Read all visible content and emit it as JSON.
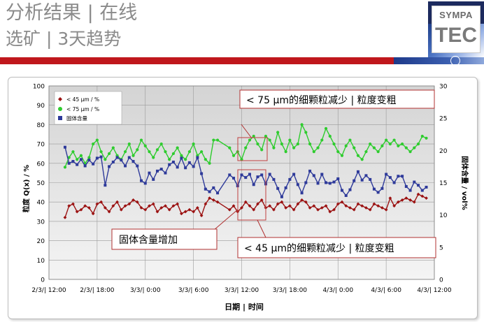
{
  "header": {
    "title": "分析结果 | 在线",
    "subtitle": "选矿 | 3天趋势",
    "logo_text": "SYMPA",
    "logo_mark": "TEC"
  },
  "colors": {
    "accent_red": "#c0171c",
    "series_dark_red": "#9b1111",
    "series_green": "#2ecc2e",
    "series_blue": "#2e3a9a",
    "annotation_border": "#b03030"
  },
  "chart_data": {
    "type": "line",
    "title": "",
    "xlabel": "日期 | 时间",
    "ylabel": "粒度 Q(x) / %",
    "y2label": "固体含量 / vol%",
    "ylim": [
      0,
      100
    ],
    "y2lim": [
      0,
      30
    ],
    "yticks": [
      "0",
      "10",
      "20",
      "30",
      "40",
      "50",
      "60",
      "70",
      "80",
      "90",
      "100"
    ],
    "y2ticks": [
      "0",
      "5",
      "10",
      "15",
      "20",
      "25",
      "30"
    ],
    "xticks": [
      "2/3/| 12:00",
      "2/3/| 18:00",
      "3/3/| 0:00",
      "3/3/| 6:00",
      "3/3/| 12:00",
      "3/3/| 18:00",
      "4/3/| 0:00",
      "4/3/| 6:00",
      "4/3/| 12:00"
    ],
    "x_unit": "hours since 2/3 12:00",
    "xlim": [
      0,
      48
    ],
    "grid": true,
    "legend_placement": "top-left",
    "series": [
      {
        "name": "< 45 µm / %",
        "axis": "left",
        "marker": "diamond",
        "color": "#9b1111",
        "x": [
          2.0,
          2.5,
          3.0,
          3.5,
          4.0,
          4.5,
          5.0,
          5.5,
          6.0,
          6.5,
          7.0,
          7.5,
          8.0,
          8.5,
          9.0,
          9.5,
          10.0,
          10.5,
          11.0,
          11.5,
          12.0,
          12.5,
          13.0,
          13.5,
          14.0,
          14.5,
          15.0,
          15.5,
          16.0,
          16.5,
          17.0,
          17.5,
          18.0,
          18.5,
          19.0,
          19.5,
          20.0,
          20.5,
          21.0,
          22.5,
          23.0,
          23.5,
          24.0,
          24.5,
          25.0,
          25.5,
          26.0,
          26.5,
          27.0,
          27.5,
          28.0,
          28.5,
          29.0,
          29.5,
          30.0,
          30.5,
          31.0,
          31.5,
          32.0,
          32.5,
          33.0,
          33.5,
          34.0,
          34.5,
          35.0,
          35.5,
          36.0,
          36.5,
          37.0,
          37.5,
          38.0,
          38.5,
          39.0,
          39.5,
          40.0,
          40.5,
          41.0,
          41.5,
          42.0,
          42.5,
          43.0,
          43.5,
          44.0,
          44.5,
          45.0,
          45.5,
          46.0,
          46.5,
          47.0
        ],
        "values": [
          32,
          38,
          39,
          35,
          36,
          38,
          37,
          34,
          39,
          40,
          37,
          35,
          38,
          40,
          36,
          38,
          39,
          41,
          40,
          37,
          36,
          38,
          39,
          35,
          37,
          38,
          36,
          38,
          39,
          34,
          35,
          36,
          35,
          37,
          33,
          39,
          42,
          41,
          40,
          36,
          38,
          35,
          37,
          40,
          38,
          36,
          39,
          41,
          37,
          38,
          36,
          39,
          40,
          37,
          38,
          36,
          39,
          41,
          40,
          37,
          38,
          36,
          37,
          38,
          35,
          36,
          39,
          40,
          38,
          37,
          36,
          39,
          38,
          37,
          36,
          39,
          38,
          37,
          36,
          42,
          38,
          40,
          41,
          42,
          41,
          40,
          44,
          43,
          42
        ]
      },
      {
        "name": "< 75 µm / %",
        "axis": "left",
        "marker": "circle",
        "color": "#2ecc2e",
        "x": [
          2.0,
          2.5,
          3.0,
          3.5,
          4.0,
          4.5,
          5.0,
          5.5,
          6.0,
          6.5,
          7.0,
          7.5,
          8.0,
          8.5,
          9.0,
          9.5,
          10.0,
          10.5,
          11.0,
          11.5,
          12.0,
          12.5,
          13.0,
          13.5,
          14.0,
          14.5,
          15.0,
          15.5,
          16.0,
          16.5,
          17.0,
          17.5,
          18.0,
          18.5,
          19.0,
          19.5,
          20.0,
          20.5,
          21.0,
          22.5,
          23.0,
          23.5,
          24.0,
          24.5,
          25.0,
          25.5,
          26.0,
          26.5,
          27.0,
          27.5,
          28.0,
          28.5,
          29.0,
          29.5,
          30.0,
          30.5,
          31.0,
          31.5,
          32.0,
          32.5,
          33.0,
          33.5,
          34.0,
          34.5,
          35.0,
          35.5,
          36.0,
          36.5,
          37.0,
          37.5,
          38.0,
          38.5,
          39.0,
          39.5,
          40.0,
          40.5,
          41.0,
          41.5,
          42.0,
          42.5,
          43.0,
          43.5,
          44.0,
          44.5,
          45.0,
          45.5,
          46.0,
          46.5,
          47.0
        ],
        "values": [
          58,
          63,
          66,
          62,
          64,
          60,
          63,
          70,
          72,
          66,
          62,
          65,
          68,
          64,
          62,
          66,
          70,
          64,
          67,
          72,
          69,
          66,
          63,
          67,
          70,
          66,
          62,
          65,
          68,
          64,
          62,
          66,
          70,
          64,
          66,
          62,
          60,
          72,
          72,
          68,
          64,
          66,
          62,
          68,
          72,
          74,
          70,
          67,
          74,
          72,
          68,
          76,
          70,
          66,
          72,
          68,
          70,
          80,
          76,
          70,
          66,
          68,
          72,
          78,
          74,
          70,
          66,
          64,
          69,
          72,
          68,
          64,
          62,
          66,
          70,
          68,
          66,
          69,
          72,
          70,
          72,
          69,
          70,
          68,
          66,
          68,
          70,
          74,
          73
        ]
      },
      {
        "name": "固体含量",
        "axis": "right",
        "marker": "square",
        "color": "#2e3a9a",
        "x": [
          2.0,
          2.5,
          3.0,
          3.5,
          4.0,
          4.5,
          5.0,
          5.5,
          6.0,
          6.5,
          7.0,
          7.5,
          8.0,
          8.5,
          9.0,
          9.5,
          10.0,
          10.5,
          11.0,
          11.5,
          12.0,
          12.5,
          13.0,
          13.5,
          14.0,
          14.5,
          15.0,
          15.5,
          16.0,
          16.5,
          17.0,
          17.5,
          18.0,
          18.5,
          19.0,
          19.5,
          20.0,
          20.5,
          21.0,
          22.5,
          23.0,
          23.5,
          24.0,
          24.5,
          25.0,
          25.5,
          26.0,
          26.5,
          27.0,
          27.5,
          28.0,
          28.5,
          29.0,
          29.5,
          30.0,
          30.5,
          31.0,
          31.5,
          32.0,
          32.5,
          33.0,
          33.5,
          34.0,
          34.5,
          35.0,
          35.5,
          36.0,
          36.5,
          37.0,
          37.5,
          38.0,
          38.5,
          39.0,
          39.5,
          40.0,
          40.5,
          41.0,
          41.5,
          42.0,
          42.5,
          43.0,
          43.5,
          44.0,
          44.5,
          45.0,
          45.5,
          46.0,
          46.5,
          47.0
        ],
        "values": [
          20.5,
          18.0,
          18.3,
          17.8,
          18.6,
          17.6,
          18.5,
          17.9,
          18.8,
          19.0,
          14.6,
          17.5,
          18.2,
          18.9,
          18.5,
          17.6,
          18.9,
          18.3,
          17.6,
          15.3,
          14.9,
          16.5,
          15.5,
          16.8,
          17.1,
          16.5,
          17.8,
          18.2,
          17.4,
          18.8,
          17.3,
          18.1,
          17.5,
          18.9,
          16.4,
          14.0,
          13.6,
          14.2,
          13.4,
          16.2,
          15.7,
          14.5,
          16.2,
          15.8,
          16.3,
          14.7,
          15.9,
          16.2,
          14.8,
          16.3,
          15.5,
          14.1,
          12.8,
          14.2,
          15.5,
          16.3,
          14.7,
          13.4,
          15.0,
          16.8,
          16.1,
          14.9,
          16.3,
          15.0,
          14.9,
          15.1,
          15.6,
          13.8,
          13.0,
          13.9,
          15.3,
          16.7,
          15.4,
          16.1,
          15.5,
          14.0,
          13.5,
          14.1,
          16.3,
          15.8,
          15.0,
          16.0,
          16.0,
          14.4,
          13.8,
          15.1,
          14.6,
          13.8,
          14.3
        ]
      }
    ],
    "annotations": [
      {
        "id": "a75",
        "text": "< 75 µm的细颗粒减少 | 粒度变粗"
      },
      {
        "id": "asolid",
        "text": "固体含量增加"
      },
      {
        "id": "a45",
        "text": "< 45 µm的细颗粒减少 | 粒度变粗"
      }
    ]
  }
}
